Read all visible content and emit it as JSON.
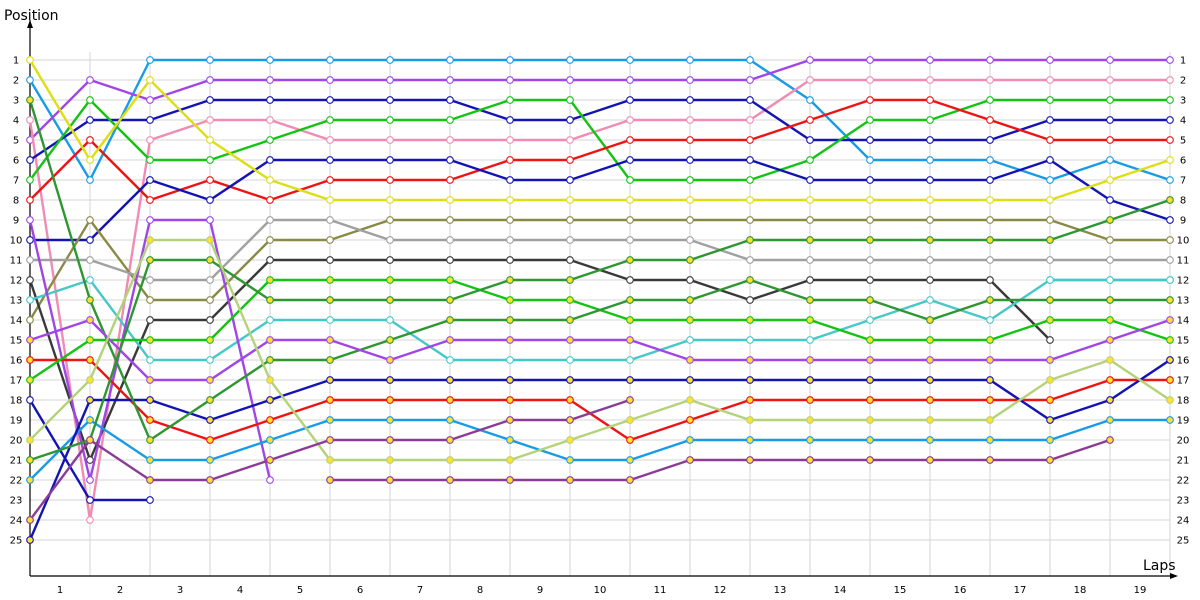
{
  "chart_data": {
    "type": "line",
    "title": "",
    "ylabel": "Position",
    "xlabel": "Laps",
    "x_ticks": [
      "1",
      "2",
      "3",
      "4",
      "5",
      "6",
      "7",
      "8",
      "9",
      "10",
      "11",
      "12",
      "13",
      "14",
      "15",
      "16",
      "17",
      "18",
      "19"
    ],
    "y_ticks": [
      "1",
      "2",
      "3",
      "4",
      "5",
      "6",
      "7",
      "8",
      "9",
      "10",
      "11",
      "12",
      "13",
      "14",
      "15",
      "16",
      "17",
      "18",
      "19",
      "20",
      "21",
      "22",
      "23",
      "24",
      "25"
    ],
    "y_axis_inverted": true,
    "grid": true,
    "series": [
      {
        "color": "#1a9be6",
        "marker": "white",
        "values": [
          2,
          7,
          1,
          1,
          1,
          1,
          1,
          1,
          1,
          1,
          1,
          1,
          1,
          3,
          6,
          6,
          6,
          7,
          6,
          7
        ]
      },
      {
        "color": "#a046e6",
        "marker": "white",
        "values": [
          5,
          2,
          3,
          2,
          2,
          2,
          2,
          2,
          2,
          2,
          2,
          2,
          2,
          1,
          1,
          1,
          1,
          1,
          1,
          1
        ]
      },
      {
        "color": "#f08cb4",
        "marker": "white",
        "values": [
          4,
          24,
          5,
          4,
          4,
          5,
          5,
          5,
          5,
          5,
          4,
          4,
          4,
          2,
          2,
          2,
          2,
          2,
          2,
          2
        ]
      },
      {
        "color": "#1414b4",
        "marker": "white",
        "values": [
          6,
          4,
          4,
          3,
          3,
          3,
          3,
          3,
          4,
          4,
          3,
          3,
          3,
          5,
          5,
          5,
          5,
          4,
          4,
          4
        ]
      },
      {
        "color": "#14c314",
        "marker": "white",
        "values": [
          7,
          3,
          6,
          6,
          5,
          4,
          4,
          4,
          3,
          3,
          7,
          7,
          7,
          6,
          4,
          4,
          3,
          3,
          3,
          3
        ]
      },
      {
        "color": "#ee1414",
        "marker": "white",
        "values": [
          8,
          5,
          8,
          7,
          8,
          7,
          7,
          7,
          6,
          6,
          5,
          5,
          5,
          4,
          3,
          3,
          4,
          5,
          5,
          5
        ]
      },
      {
        "color": "#1414b4",
        "marker": "white",
        "values": [
          10,
          10,
          7,
          8,
          6,
          6,
          6,
          6,
          7,
          7,
          6,
          6,
          6,
          7,
          7,
          7,
          7,
          6,
          8,
          9
        ]
      },
      {
        "color": "#dede14",
        "marker": "white",
        "values": [
          1,
          6,
          2,
          5,
          7,
          8,
          8,
          8,
          8,
          8,
          8,
          8,
          8,
          8,
          8,
          8,
          8,
          8,
          7,
          6
        ]
      },
      {
        "color": "#8a8a46",
        "marker": "white",
        "values": [
          14,
          9,
          13,
          13,
          10,
          10,
          9,
          9,
          9,
          9,
          9,
          9,
          9,
          9,
          9,
          9,
          9,
          9,
          10,
          10
        ]
      },
      {
        "color": "#a0a0a0",
        "marker": "white",
        "values": [
          11,
          11,
          12,
          12,
          9,
          9,
          10,
          10,
          10,
          10,
          10,
          10,
          11,
          11,
          11,
          11,
          11,
          11,
          11,
          11
        ]
      },
      {
        "color": "#3a3a3a",
        "marker": "white",
        "values": [
          12,
          21,
          14,
          14,
          11,
          11,
          11,
          11,
          11,
          11,
          12,
          12,
          13,
          12,
          12,
          12,
          12,
          15
        ]
      },
      {
        "color": "#46c8c8",
        "marker": "white",
        "values": [
          13,
          12,
          16,
          16,
          14,
          14,
          14,
          16,
          16,
          16,
          16,
          15,
          15,
          15,
          14,
          13,
          14,
          12,
          12,
          12
        ]
      },
      {
        "color": "#1414b4",
        "marker": "white",
        "values": [
          18,
          23,
          23
        ]
      },
      {
        "color": "#a046e6",
        "marker": "white",
        "values": [
          9,
          22,
          9,
          9,
          22
        ]
      },
      {
        "color": "#ee1414",
        "marker": "yellow",
        "values": [
          16,
          16,
          19,
          20,
          19,
          18,
          18,
          18,
          18,
          18,
          20,
          19,
          18,
          18,
          18,
          18,
          18,
          18,
          17,
          17
        ]
      },
      {
        "color": "#1a9be6",
        "marker": "yellow",
        "values": [
          22,
          19,
          21,
          21,
          20,
          19,
          19,
          19,
          20,
          21,
          21,
          20,
          20,
          20,
          20,
          20,
          20,
          20,
          19,
          19
        ]
      },
      {
        "color": "#1414b4",
        "marker": "yellow",
        "values": [
          25,
          18,
          18,
          19,
          18,
          17,
          17,
          17,
          17,
          17,
          17,
          17,
          17,
          17,
          17,
          17,
          17,
          19,
          18,
          16
        ]
      },
      {
        "color": "#14c314",
        "marker": "yellow",
        "values": [
          17,
          15,
          15,
          15,
          12,
          12,
          12,
          12,
          13,
          13,
          14,
          14,
          14,
          14,
          15,
          15,
          15,
          14,
          14,
          15
        ]
      },
      {
        "color": "#2e9632",
        "marker": "yellow",
        "values": [
          3,
          13,
          20,
          18,
          16,
          16,
          15,
          14,
          14,
          14,
          13,
          13,
          12,
          13,
          13,
          14,
          13,
          13,
          13,
          13
        ]
      },
      {
        "color": "#a046e6",
        "marker": "yellow",
        "values": [
          15,
          14,
          17,
          17,
          15,
          15,
          16,
          15,
          15,
          15,
          15,
          16,
          16,
          16,
          16,
          16,
          16,
          16,
          15,
          14
        ]
      },
      {
        "color": "#2e9632",
        "marker": "yellow",
        "values": [
          21,
          20,
          11,
          11,
          13,
          13,
          13,
          13,
          12,
          12,
          11,
          11,
          10,
          10,
          10,
          10,
          10,
          10,
          9,
          8
        ]
      },
      {
        "color": "#b4d27a",
        "marker": "yellow",
        "values": [
          20,
          17,
          10,
          10,
          17,
          21,
          21,
          21,
          21,
          20,
          19,
          18,
          19,
          19,
          19,
          19,
          19,
          17,
          16,
          18
        ]
      },
      {
        "color": "#8c3c96",
        "marker": "yellow",
        "values": [
          24,
          20,
          22,
          22,
          21,
          20,
          20,
          20,
          19,
          19,
          18
        ]
      },
      {
        "color": "#8c3c96",
        "marker": "yellow",
        "values": [
          null,
          null,
          null,
          null,
          null,
          22,
          22,
          22,
          22,
          22,
          22,
          21,
          21,
          21,
          21,
          21,
          21,
          21,
          20
        ]
      },
      {
        "color": "#46c8c8",
        "marker": "white",
        "values": [
          null,
          null,
          null,
          null,
          null,
          null,
          null,
          null,
          null,
          null,
          null,
          null,
          null,
          null,
          null,
          null,
          null,
          12,
          12,
          12
        ]
      }
    ]
  }
}
